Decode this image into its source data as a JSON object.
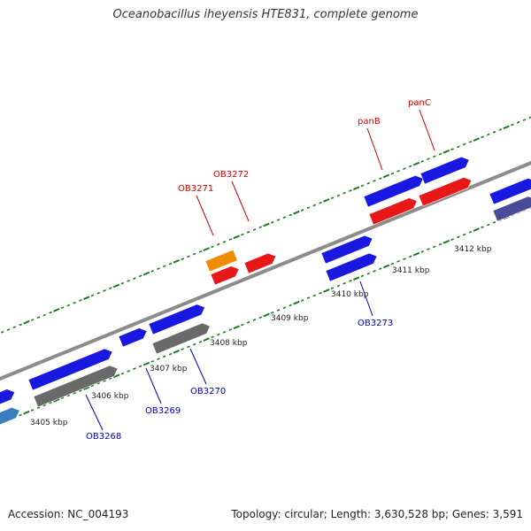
{
  "title": "Oceanobacillus iheyensis HTE831, complete genome",
  "footer": {
    "accession": "Accession: NC_004193",
    "summary": "Topology: circular; Length: 3,630,528 bp; Genes: 3,591"
  },
  "colors": {
    "forward_cds": "#1818e0",
    "reverse_cds": "#e81818",
    "gray_track": "#6a6a6a",
    "orange_feature": "#f08c00",
    "light_blue_feature": "#3a7ec0",
    "slate_feature": "#4a4a9a",
    "tick_green": "#1e7a1e",
    "label_forward": "#0000c0",
    "label_reverse": "#d00000",
    "backbone": "#8c8c8c"
  },
  "kbp_labels": [
    "3405 kbp",
    "3406 kbp",
    "3407 kbp",
    "3408 kbp",
    "3409 kbp",
    "3410 kbp",
    "3411 kbp",
    "3412 kbp"
  ],
  "gene_labels": [
    {
      "text": "OB3268",
      "strand": "forward"
    },
    {
      "text": "OB3269",
      "strand": "forward"
    },
    {
      "text": "OB3270",
      "strand": "forward"
    },
    {
      "text": "OB3271",
      "strand": "reverse"
    },
    {
      "text": "OB3272",
      "strand": "reverse"
    },
    {
      "text": "OB3273",
      "strand": "forward"
    },
    {
      "text": "panB",
      "strand": "reverse"
    },
    {
      "text": "panC",
      "strand": "reverse"
    }
  ]
}
